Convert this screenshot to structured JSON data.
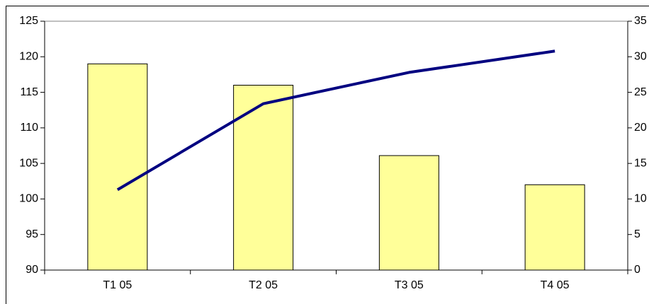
{
  "chart_data": {
    "type": "combo",
    "categories": [
      "T1 05",
      "T2 05",
      "T3 05",
      "T4 05"
    ],
    "series": [
      {
        "type": "bar",
        "axis": "y",
        "color": "#ffff99",
        "values": [
          119,
          116,
          106.1,
          102
        ]
      },
      {
        "type": "line",
        "axis": "y2",
        "color": "#000080",
        "values": [
          11.3,
          23.4,
          27.8,
          30.8
        ]
      }
    ],
    "ylim": [
      90,
      125
    ],
    "yticks": [
      90,
      95,
      100,
      105,
      110,
      115,
      120,
      125
    ],
    "y2lim": [
      0,
      35
    ],
    "y2ticks": [
      0,
      5,
      10,
      15,
      20,
      25,
      30,
      35
    ],
    "grid": false
  }
}
